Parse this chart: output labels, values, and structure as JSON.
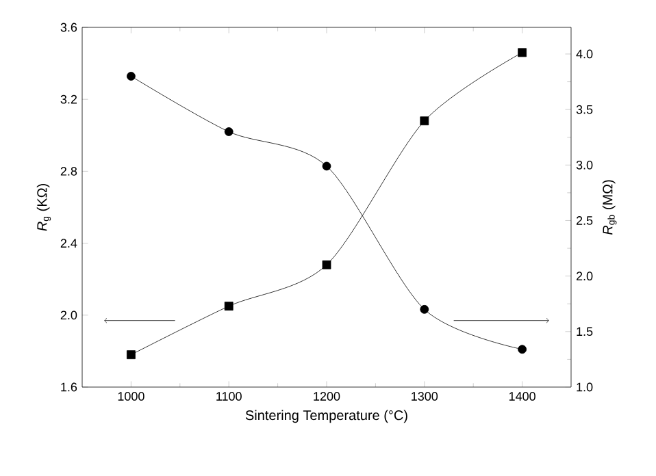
{
  "chart_data": {
    "type": "line",
    "xlabel": "Sintering Temperature (°C)",
    "ylabel": "*R*$_{g}$ (KΩ)",
    "y2label": "*R*$_{gb}$ (MΩ)",
    "x": [
      1000,
      1100,
      1200,
      1300,
      1400
    ],
    "series": [
      {
        "color": "#000000",
        "marker": "square",
        "values": [
          1.78,
          2.05,
          2.28,
          3.08,
          3.46
        ]
      },
      {
        "color": "#000000",
        "marker": "circle",
        "axis": "y2",
        "values": [
          3.8,
          3.3,
          2.99,
          1.7,
          1.34
        ]
      }
    ],
    "xlim": [
      950,
      1450
    ],
    "xticks": [
      1000,
      1100,
      1200,
      1300,
      1400
    ],
    "ylim": [
      1.6,
      3.6
    ],
    "yticks": [
      1.6,
      2.4,
      2.8,
      3.2,
      3.6,
      {
        "value": 2.0,
        "label": "2.0"
      }
    ],
    "y2lim": [
      1.0,
      4.24
    ],
    "y2ticks": [
      {
        "value": 1.0,
        "label": "1.0"
      },
      1.5,
      {
        "value": 2.0,
        "label": "2.0"
      },
      2.5,
      {
        "value": 3.0,
        "label": "3.0"
      },
      3.5,
      {
        "value": 4.0,
        "label": "4.0"
      }
    ],
    "line_style": "solid"
  }
}
